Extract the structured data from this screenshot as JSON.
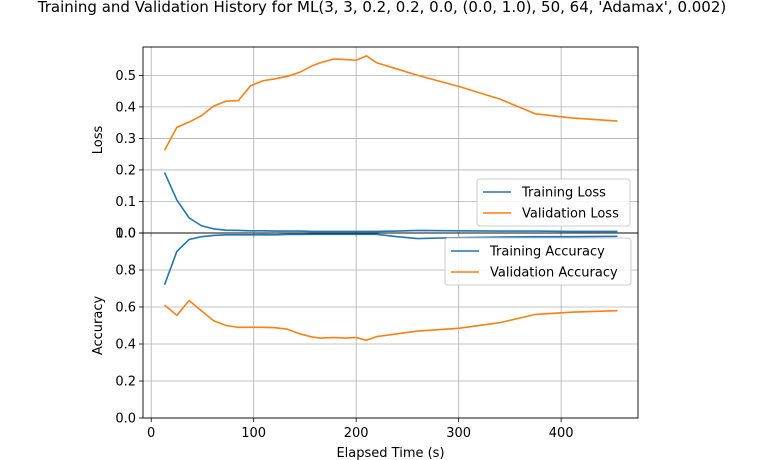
{
  "title": "Training and Validation History for ML(3, 3, 0.2, 0.2, 0.0, (0.0, 1.0), 50, 64, 'Adamax', 0.002)",
  "chart_data": [
    {
      "type": "line",
      "ylabel": "Loss",
      "xlabel": "",
      "xlim": [
        -8,
        475
      ],
      "ylim": [
        0.0,
        0.59
      ],
      "yticks": [
        "0.0",
        "0.1",
        "0.2",
        "0.3",
        "0.4",
        "0.5"
      ],
      "grid": true,
      "legend": "right",
      "series": [
        {
          "name": "Training Loss",
          "color": "#1f77b4",
          "x": [
            13,
            25,
            37,
            49,
            61,
            73,
            85,
            97,
            109,
            121,
            133,
            145,
            157,
            165,
            178,
            190,
            200,
            210,
            220,
            240,
            260,
            300,
            340,
            375,
            410,
            455
          ],
          "y": [
            0.192,
            0.105,
            0.048,
            0.023,
            0.013,
            0.009,
            0.008,
            0.007,
            0.007,
            0.006,
            0.006,
            0.006,
            0.005,
            0.005,
            0.005,
            0.005,
            0.005,
            0.005,
            0.005,
            0.006,
            0.008,
            0.007,
            0.006,
            0.006,
            0.005,
            0.005
          ]
        },
        {
          "name": "Validation Loss",
          "color": "#ff7f0e",
          "x": [
            13,
            25,
            37,
            49,
            61,
            73,
            85,
            97,
            109,
            121,
            133,
            145,
            157,
            165,
            178,
            190,
            200,
            210,
            220,
            240,
            260,
            300,
            340,
            375,
            410,
            455
          ],
          "y": [
            0.262,
            0.335,
            0.352,
            0.372,
            0.403,
            0.418,
            0.42,
            0.467,
            0.483,
            0.489,
            0.497,
            0.51,
            0.53,
            0.54,
            0.552,
            0.55,
            0.548,
            0.562,
            0.54,
            0.52,
            0.5,
            0.465,
            0.425,
            0.378,
            0.365,
            0.355
          ]
        }
      ]
    },
    {
      "type": "line",
      "ylabel": "Accuracy",
      "xlabel": "Elapsed Time (s)",
      "xlim": [
        -8,
        475
      ],
      "ylim": [
        0.0,
        1.0
      ],
      "yticks": [
        "0.0",
        "0.2",
        "0.4",
        "0.6",
        "0.8",
        "1.0"
      ],
      "xticks": [
        "0",
        "100",
        "200",
        "300",
        "400"
      ],
      "grid": true,
      "legend": "top-right",
      "series": [
        {
          "name": "Training Accuracy",
          "color": "#1f77b4",
          "x": [
            13,
            25,
            37,
            49,
            61,
            73,
            85,
            97,
            109,
            121,
            133,
            145,
            157,
            165,
            178,
            190,
            200,
            210,
            220,
            240,
            260,
            300,
            340,
            375,
            410,
            455
          ],
          "y": [
            0.72,
            0.9,
            0.965,
            0.98,
            0.987,
            0.99,
            0.99,
            0.99,
            0.991,
            0.99,
            0.992,
            0.992,
            0.993,
            0.993,
            0.993,
            0.993,
            0.993,
            0.993,
            0.993,
            0.98,
            0.97,
            0.975,
            0.978,
            0.98,
            0.98,
            0.982
          ]
        },
        {
          "name": "Validation Accuracy",
          "color": "#ff7f0e",
          "x": [
            13,
            25,
            37,
            49,
            61,
            73,
            85,
            97,
            109,
            121,
            133,
            145,
            157,
            165,
            178,
            190,
            200,
            210,
            220,
            240,
            260,
            300,
            340,
            375,
            410,
            455
          ],
          "y": [
            0.61,
            0.555,
            0.635,
            0.58,
            0.525,
            0.5,
            0.49,
            0.49,
            0.49,
            0.488,
            0.48,
            0.455,
            0.438,
            0.432,
            0.435,
            0.432,
            0.435,
            0.42,
            0.44,
            0.455,
            0.47,
            0.485,
            0.515,
            0.56,
            0.572,
            0.58
          ]
        }
      ]
    }
  ]
}
